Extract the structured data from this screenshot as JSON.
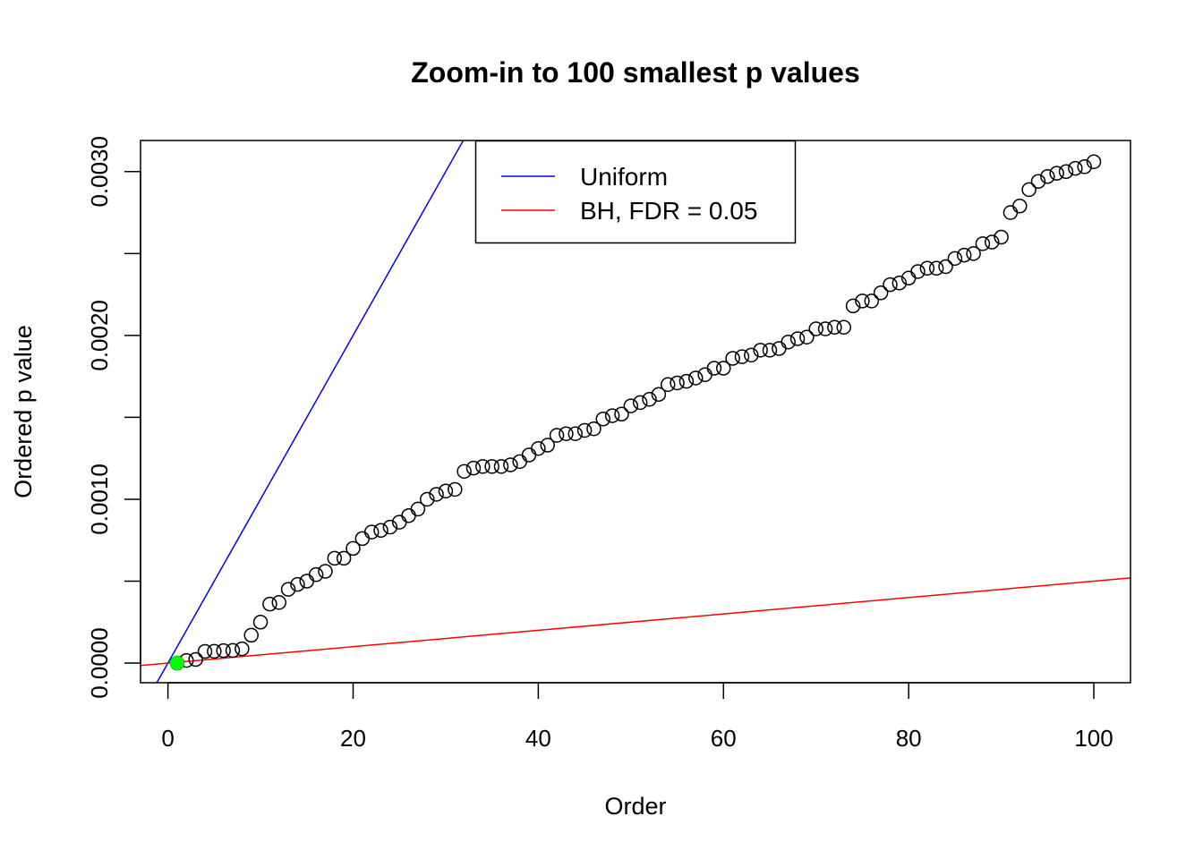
{
  "chart_data": {
    "type": "scatter",
    "title": "Zoom-in to 100 smallest p values",
    "xlabel": "Order",
    "ylabel": "Ordered p value",
    "xlim": [
      -2.96,
      103.96
    ],
    "ylim": [
      -0.00012,
      0.00319
    ],
    "grid": false,
    "x_ticks": [
      0,
      20,
      40,
      60,
      80,
      100
    ],
    "x_tick_labels": [
      "0",
      "20",
      "40",
      "60",
      "80",
      "100"
    ],
    "y_ticks": [
      0,
      0.0005,
      0.001,
      0.0015,
      0.002,
      0.0025,
      0.003
    ],
    "y_tick_labels": [
      "0.0000",
      "",
      "0.0010",
      "",
      "0.0020",
      "",
      "0.0030"
    ],
    "points": {
      "marker": "open-circle",
      "color": "#000000",
      "x": [
        1,
        2,
        3,
        4,
        5,
        6,
        7,
        8,
        9,
        10,
        11,
        12,
        13,
        14,
        15,
        16,
        17,
        18,
        19,
        20,
        21,
        22,
        23,
        24,
        25,
        26,
        27,
        28,
        29,
        30,
        31,
        32,
        33,
        34,
        35,
        36,
        37,
        38,
        39,
        40,
        41,
        42,
        43,
        44,
        45,
        46,
        47,
        48,
        49,
        50,
        51,
        52,
        53,
        54,
        55,
        56,
        57,
        58,
        59,
        60,
        61,
        62,
        63,
        64,
        65,
        66,
        67,
        68,
        69,
        70,
        71,
        72,
        73,
        74,
        75,
        76,
        77,
        78,
        79,
        80,
        81,
        82,
        83,
        84,
        85,
        86,
        87,
        88,
        89,
        90,
        91,
        92,
        93,
        94,
        95,
        96,
        97,
        98,
        99,
        100
      ],
      "y": [
        0.0,
        1.6e-05,
        2.2e-05,
        7.1e-05,
        7.2e-05,
        7.6e-05,
        7.7e-05,
        8.7e-05,
        0.00017,
        0.00025,
        0.00036,
        0.00037,
        0.00045,
        0.00048,
        0.0005,
        0.00054,
        0.00056,
        0.00064,
        0.00064,
        0.0007,
        0.00076,
        0.0008,
        0.00081,
        0.00083,
        0.00086,
        0.0009,
        0.00094,
        0.001,
        0.00103,
        0.00105,
        0.00106,
        0.00117,
        0.00119,
        0.0012,
        0.0012,
        0.0012,
        0.00121,
        0.00123,
        0.00127,
        0.00131,
        0.00133,
        0.00139,
        0.0014,
        0.0014,
        0.00142,
        0.00143,
        0.00149,
        0.00151,
        0.00152,
        0.00157,
        0.00159,
        0.00161,
        0.00164,
        0.0017,
        0.00171,
        0.00172,
        0.00174,
        0.00176,
        0.0018,
        0.0018,
        0.00186,
        0.00187,
        0.00188,
        0.00191,
        0.00191,
        0.00192,
        0.00196,
        0.00198,
        0.00199,
        0.00204,
        0.00204,
        0.00205,
        0.00205,
        0.00218,
        0.00221,
        0.00221,
        0.00226,
        0.00231,
        0.00232,
        0.00235,
        0.00239,
        0.00241,
        0.00241,
        0.00242,
        0.00247,
        0.00249,
        0.0025,
        0.00256,
        0.00257,
        0.0026,
        0.00275,
        0.00279,
        0.00289,
        0.00294,
        0.00297,
        0.00299,
        0.003,
        0.00302,
        0.00303,
        0.00306
      ]
    },
    "highlight": {
      "x": 1,
      "y": 0.0,
      "color": "#00ff00",
      "marker": "filled-circle"
    },
    "lines": [
      {
        "name": "Uniform",
        "intercept": 0,
        "slope": 0.0001,
        "color": "#0000ff"
      },
      {
        "name": "BH, FDR = 0.05",
        "intercept": 0,
        "slope": 5e-06,
        "color": "#ff0000"
      }
    ],
    "legend": {
      "placement": "top-center",
      "entries": [
        "Uniform",
        "BH, FDR = 0.05"
      ]
    }
  }
}
